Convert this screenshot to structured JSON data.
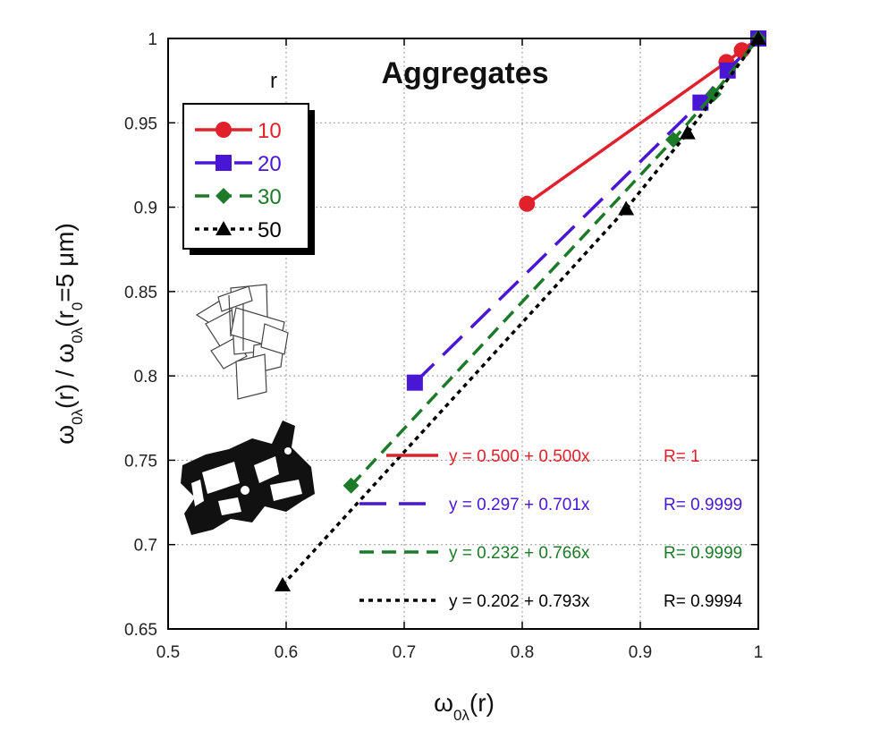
{
  "chart_data": {
    "type": "line",
    "title": "Aggregates",
    "xlabel": "ω₀λ(r)",
    "ylabel": "ω₀λ(r) / ω₀λ(r₀=5 μm)",
    "xlim": [
      0.5,
      1.0
    ],
    "ylim": [
      0.65,
      1.0
    ],
    "x_ticks": [
      "0.5",
      "0.6",
      "0.7",
      "0.8",
      "0.9",
      "1"
    ],
    "y_ticks": [
      "0.65",
      "0.7",
      "0.75",
      "0.8",
      "0.85",
      "0.9",
      "0.95",
      "1"
    ],
    "grid": true,
    "legend": {
      "title": "r",
      "placement": "top-left"
    },
    "series": [
      {
        "name": "10",
        "color": "#e0202a",
        "marker": "circle",
        "dash": "solid",
        "points": [
          [
            0.804,
            0.902
          ],
          [
            0.973,
            0.986
          ],
          [
            0.986,
            0.993
          ],
          [
            1.0,
            1.0
          ]
        ]
      },
      {
        "name": "20",
        "color": "#4a16d6",
        "marker": "square",
        "dash": "longdash",
        "points": [
          [
            0.709,
            0.796
          ],
          [
            0.951,
            0.962
          ],
          [
            0.974,
            0.981
          ],
          [
            1.0,
            1.0
          ]
        ]
      },
      {
        "name": "30",
        "color": "#1c7a28",
        "marker": "diamond",
        "dash": "dash",
        "points": [
          [
            0.655,
            0.735
          ],
          [
            0.928,
            0.94
          ],
          [
            0.962,
            0.967
          ],
          [
            1.0,
            1.0
          ]
        ]
      },
      {
        "name": "50",
        "color": "#000000",
        "marker": "triangle",
        "dash": "dot",
        "points": [
          [
            0.597,
            0.676
          ],
          [
            0.888,
            0.899
          ],
          [
            0.94,
            0.944
          ],
          [
            1.0,
            1.0
          ]
        ]
      }
    ],
    "fit_annotations": [
      {
        "equation": "y = 0.500 + 0.500x",
        "r_label": "R= 1",
        "color": "#e0202a"
      },
      {
        "equation": "y = 0.297 + 0.701x",
        "r_label": "R= 0.9999",
        "color": "#4a16d6"
      },
      {
        "equation": "y = 0.232 + 0.766x",
        "r_label": "R= 0.9999",
        "color": "#1c7a28"
      },
      {
        "equation": "y = 0.202 + 0.793x",
        "r_label": "R= 0.9994",
        "color": "#000000"
      }
    ]
  }
}
